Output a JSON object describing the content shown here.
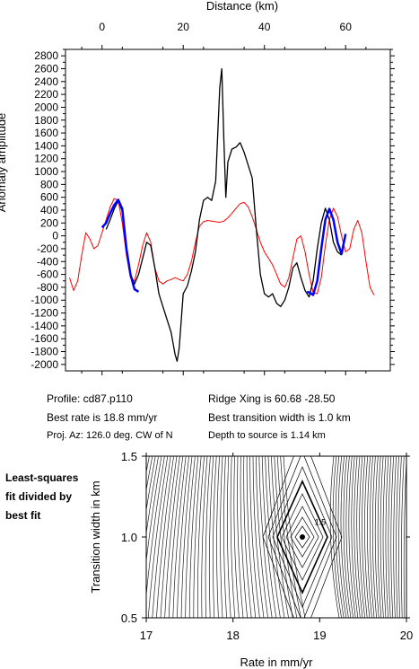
{
  "chart_data": [
    {
      "type": "line",
      "xlabel": "Distance (km)",
      "ylabel": "Anomaly amplitude",
      "xlim": [
        -9,
        71
      ],
      "ylim": [
        -2100,
        2900
      ],
      "xticks": [
        0,
        20,
        40,
        60
      ],
      "xtick_labels": [
        "0",
        "20",
        "40",
        "60"
      ],
      "yticks": [
        -2000,
        -1800,
        -1600,
        -1400,
        -1200,
        -1000,
        -800,
        -600,
        -400,
        -200,
        0,
        200,
        400,
        600,
        800,
        1000,
        1200,
        1400,
        1600,
        1800,
        2000,
        2200,
        2400,
        2600,
        2800
      ],
      "ytick_labels": [
        "-2000",
        "-1800",
        "-1600",
        "-1400",
        "-1200",
        "-1000",
        "-800",
        "-600",
        "-400",
        "-200",
        "0",
        "200",
        "400",
        "600",
        "800",
        "1000",
        "1200",
        "1400",
        "1600",
        "1800",
        "2000",
        "2200",
        "2400",
        "2600",
        "2800"
      ],
      "grid": false,
      "series": [
        {
          "color": "#ff0000",
          "x": [
            -8,
            -7,
            -6,
            -5,
            -4,
            -3,
            -2,
            -1,
            0,
            1,
            2,
            3,
            4,
            5,
            6,
            7,
            8,
            9,
            10,
            11,
            12,
            13,
            14,
            15,
            16,
            17,
            18,
            19,
            20,
            21,
            22,
            23,
            24,
            25,
            26,
            27,
            28,
            29,
            30,
            31,
            32,
            33,
            34,
            35,
            36,
            37,
            38,
            39,
            40,
            41,
            42,
            43,
            44,
            45,
            46,
            47,
            48,
            49,
            50,
            51,
            52,
            53,
            54,
            55,
            56,
            57,
            58,
            59,
            60,
            61,
            62,
            63,
            64,
            65,
            66,
            67
          ],
          "y": [
            -650,
            -850,
            -700,
            -300,
            50,
            -50,
            -200,
            -150,
            50,
            250,
            450,
            580,
            550,
            200,
            -300,
            -650,
            -700,
            -450,
            -150,
            50,
            -100,
            -500,
            -700,
            -750,
            -700,
            -680,
            -650,
            -680,
            -700,
            -600,
            -400,
            -100,
            150,
            220,
            240,
            230,
            220,
            210,
            230,
            280,
            350,
            430,
            500,
            520,
            450,
            300,
            100,
            -100,
            -250,
            -350,
            -450,
            -600,
            -750,
            -800,
            -650,
            -350,
            -50,
            0,
            -250,
            -600,
            -880,
            -900,
            -650,
            -150,
            250,
            430,
            300,
            0,
            -250,
            -200,
            100,
            240,
            50,
            -400,
            -800,
            -920
          ]
        },
        {
          "color": "#000000",
          "x": [
            1,
            2,
            3,
            4,
            5,
            6,
            7,
            8,
            9,
            10,
            11,
            12,
            13,
            14,
            15,
            16,
            17,
            18,
            18.5,
            19,
            20,
            21,
            22,
            23,
            24,
            25,
            26,
            27,
            28,
            29,
            29.5,
            30,
            30.5,
            31,
            32,
            33,
            34,
            35,
            36,
            37,
            38,
            39,
            40,
            41,
            42,
            43,
            44,
            45,
            46,
            47,
            48,
            49,
            50,
            51,
            52,
            53,
            54,
            55,
            56,
            57,
            58,
            59
          ],
          "y": [
            100,
            250,
            420,
            540,
            380,
            -150,
            -600,
            -750,
            -600,
            -350,
            -100,
            -150,
            -500,
            -900,
            -1100,
            -1300,
            -1500,
            -1850,
            -1950,
            -1750,
            -900,
            -780,
            -550,
            -250,
            250,
            550,
            600,
            550,
            850,
            2300,
            2600,
            1500,
            600,
            1150,
            1350,
            1380,
            1450,
            1300,
            1100,
            900,
            100,
            -600,
            -900,
            -950,
            -900,
            -1050,
            -1100,
            -1000,
            -800,
            -500,
            -420,
            -650,
            -850,
            -950,
            -700,
            -200,
            200,
            430,
            250,
            -100,
            -250,
            -300
          ]
        },
        {
          "color": "#0000ff",
          "x": [
            0,
            1,
            2,
            3,
            4,
            5,
            6,
            7,
            8,
            9
          ],
          "y": [
            130,
            200,
            350,
            480,
            560,
            420,
            -200,
            -600,
            -830,
            -870
          ]
        },
        {
          "color": "#0000ff",
          "x": [
            50.5,
            51,
            52,
            53,
            54,
            55,
            56,
            57,
            58,
            59,
            60
          ],
          "y": [
            -870,
            -880,
            -920,
            -700,
            -200,
            250,
            420,
            250,
            -100,
            -280,
            30
          ]
        }
      ]
    },
    {
      "type": "contour",
      "xlabel": "Rate in mm/yr",
      "ylabel": "Transition width in km",
      "xlim": [
        17,
        20
      ],
      "ylim": [
        0.5,
        1.5
      ],
      "xticks": [
        17,
        18,
        19,
        20
      ],
      "xtick_labels": [
        "17",
        "18",
        "19",
        "20"
      ],
      "yticks": [
        0.5,
        1.0,
        1.5
      ],
      "ytick_labels": [
        "0.5",
        "1.0",
        "1.5"
      ],
      "best_fit": {
        "rate": 18.8,
        "width": 1.0
      },
      "contour_labels": [
        {
          "text": "1.5",
          "rate": 18.9,
          "width": 1.02
        }
      ]
    }
  ],
  "info": {
    "profile": "Profile: cd87.p110",
    "best_rate": "Best rate is 18.8 mm/yr",
    "proj_az": "Proj. Az: 126.0 deg. CW of N",
    "ridge_xing": "Ridge Xing is 60.68 -28.50",
    "best_width": "Best transition width is 1.0 km",
    "depth": "Depth to source is   1.14 km"
  },
  "side_note": [
    "Least-squares",
    "fit divided by",
    "best fit"
  ]
}
